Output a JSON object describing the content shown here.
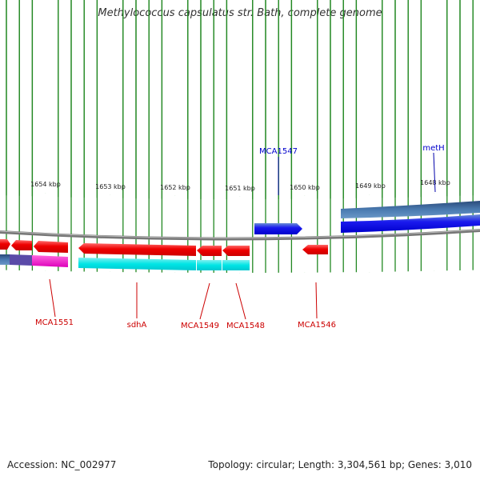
{
  "title": "Methylococcus capsulatus str. Bath, complete genome",
  "footer": {
    "accession": "Accession: NC_002977",
    "summary": "Topology: circular; Length: 3,304,561 bp; Genes: 3,010"
  },
  "scale_labels": [
    "1654 kbp",
    "1653 kbp",
    "1652 kbp",
    "1651 kbp",
    "1650 kbp",
    "1649 kbp",
    "1648 kbp"
  ],
  "gene_labels": {
    "forward": [
      "MCA1547",
      "metH"
    ],
    "reverse": [
      "MCA1551",
      "sdhA",
      "MCA1549",
      "MCA1548",
      "MCA1546"
    ]
  },
  "colors": {
    "forward_gene": "#0000ee",
    "forward_gene_dark": "#1f3f80",
    "reverse_gene": "#ee0000",
    "reverse_cds": "#00e5e5",
    "reverse_cds_alt": "#ee00cc",
    "backbone": "#888888",
    "ticks": "#228822",
    "forward_label": "#0000cc",
    "reverse_label": "#cc0000"
  }
}
